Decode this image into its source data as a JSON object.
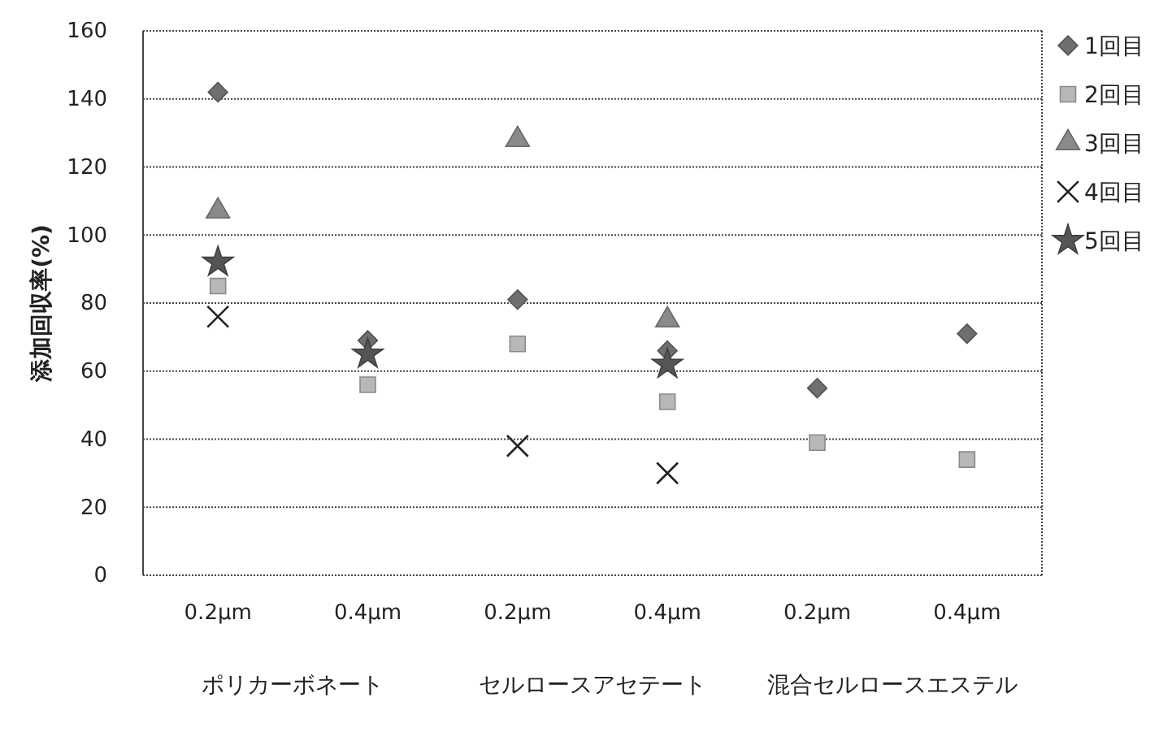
{
  "chart_data": {
    "type": "scatter",
    "ylabel": "添加回収率(%)",
    "categories": [
      "0.2μm",
      "0.4μm",
      "0.2μm",
      "0.4μm",
      "0.2μm",
      "0.4μm"
    ],
    "annotations": [
      "ポリカーボネート",
      "セルロースアセテート",
      "混合セルロースエステル"
    ],
    "series": [
      {
        "name": "1回目",
        "color": "#6f6f6f",
        "marker": "diamond",
        "values": [
          142,
          69,
          81,
          66,
          55,
          71
        ]
      },
      {
        "name": "2回目",
        "color": "#b8b8b8",
        "marker": "square",
        "values": [
          85,
          56,
          68,
          51,
          39,
          34
        ]
      },
      {
        "name": "3回目",
        "color": "#8a8a8a",
        "marker": "triangle",
        "values": [
          107,
          null,
          128,
          75,
          null,
          null
        ]
      },
      {
        "name": "4回目",
        "color": "#222222",
        "marker": "cross",
        "values": [
          76,
          null,
          38,
          30,
          null,
          null
        ]
      },
      {
        "name": "5回目",
        "color": "#555555",
        "marker": "star",
        "values": [
          92,
          65,
          null,
          62,
          null,
          null
        ]
      }
    ],
    "ylim": [
      0,
      160
    ],
    "yticks": [
      0,
      20,
      40,
      60,
      80,
      100,
      120,
      140,
      160
    ],
    "grid": "y",
    "legend": "right"
  }
}
